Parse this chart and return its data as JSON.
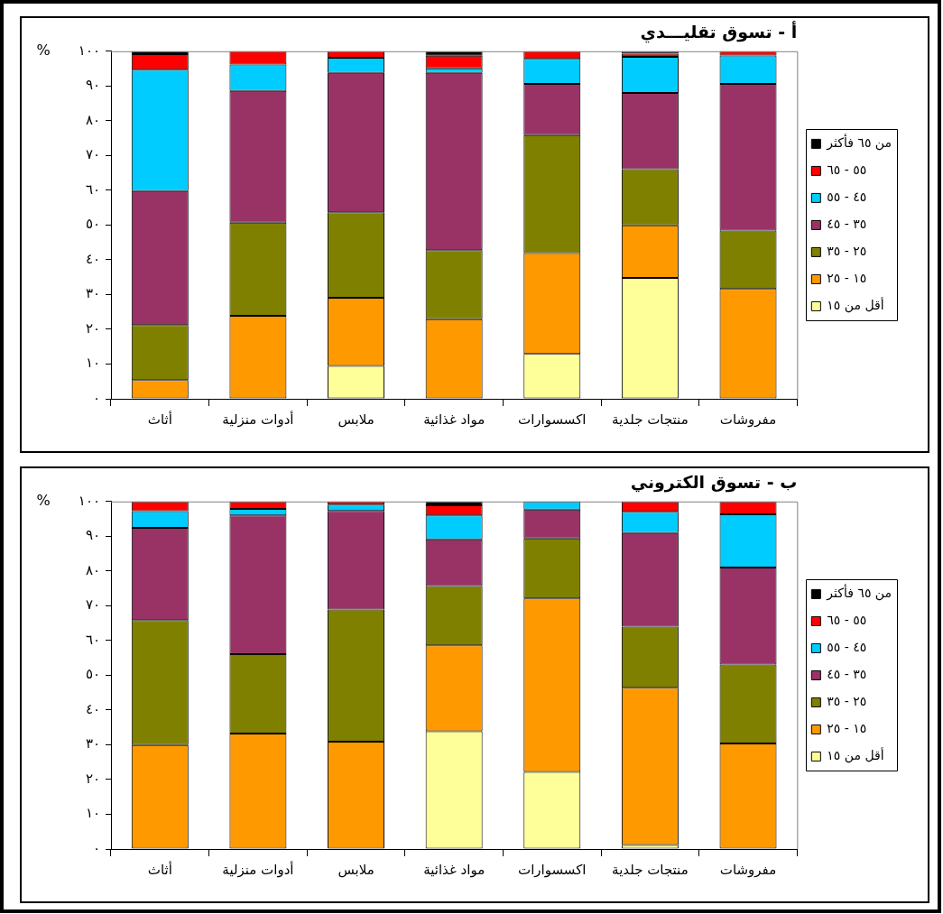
{
  "chart_data": [
    {
      "type": "bar",
      "title": "أ - تسوق تقليـــدي",
      "ylabel": "%",
      "stacked": true,
      "legend": "right",
      "categories": [
        "أثاث",
        "أدوات منزلية",
        "ملابس",
        "مواد غذائية",
        "اكسسوارات",
        "منتجات جلدية",
        "مفروشات"
      ],
      "ylim": [
        0,
        100
      ],
      "yticks": [
        {
          "value": 0,
          "label": "٠"
        },
        {
          "value": 10,
          "label": "١٠"
        },
        {
          "value": 20,
          "label": "٢٠"
        },
        {
          "value": 30,
          "label": "٣٠"
        },
        {
          "value": 40,
          "label": "٤٠"
        },
        {
          "value": 50,
          "label": "٥٠"
        },
        {
          "value": 60,
          "label": "٦٠"
        },
        {
          "value": 70,
          "label": "٧٠"
        },
        {
          "value": 80,
          "label": "٨٠"
        },
        {
          "value": 90,
          "label": "٩٠"
        },
        {
          "value": 100,
          "label": "١٠٠"
        }
      ],
      "series": [
        {
          "name": "أقل من ١٥",
          "color": "#ffff99",
          "values": [
            0,
            0,
            9.5,
            0,
            12.9,
            34.8,
            0
          ]
        },
        {
          "name": "١٥ - ٢٥",
          "color": "#ff9900",
          "values": [
            5.4,
            23.9,
            19.6,
            22.9,
            29.0,
            15.1,
            31.6
          ]
        },
        {
          "name": "٢٥ - ٣٥",
          "color": "#808000",
          "values": [
            15.8,
            26.8,
            24.6,
            19.9,
            34.0,
            16.2,
            16.8
          ]
        },
        {
          "name": "٣٥ - ٤٥",
          "color": "#993366",
          "values": [
            38.6,
            37.9,
            40.1,
            51.0,
            14.7,
            21.9,
            42.2
          ]
        },
        {
          "name": "٤٥ - ٥٥",
          "color": "#00ccff",
          "values": [
            34.9,
            7.6,
            4.3,
            1.3,
            7.2,
            10.4,
            8.2
          ]
        },
        {
          "name": "٥٥ - ٦٥",
          "color": "#ff0000",
          "values": [
            4.5,
            3.8,
            1.9,
            3.6,
            2.2,
            0.9,
            1.2
          ]
        },
        {
          "name": "من ٦٥ فأكثر",
          "color": "#000000",
          "values": [
            0.8,
            0,
            0,
            1.3,
            0,
            0.7,
            0
          ]
        }
      ]
    },
    {
      "type": "bar",
      "title": "ب - تسوق الكتروني",
      "ylabel": "%",
      "stacked": true,
      "legend": "right",
      "categories": [
        "أثاث",
        "أدوات منزلية",
        "ملابس",
        "مواد غذائية",
        "اكسسوارات",
        "منتجات جلدية",
        "مفروشات"
      ],
      "ylim": [
        0,
        100
      ],
      "yticks": [
        {
          "value": 0,
          "label": "٠"
        },
        {
          "value": 10,
          "label": "١٠"
        },
        {
          "value": 20,
          "label": "٢٠"
        },
        {
          "value": 30,
          "label": "٣٠"
        },
        {
          "value": 40,
          "label": "٤٠"
        },
        {
          "value": 50,
          "label": "٥٠"
        },
        {
          "value": 60,
          "label": "٦٠"
        },
        {
          "value": 70,
          "label": "٧٠"
        },
        {
          "value": 80,
          "label": "٨٠"
        },
        {
          "value": 90,
          "label": "٩٠"
        },
        {
          "value": 100,
          "label": "١٠٠"
        }
      ],
      "series": [
        {
          "name": "أقل من ١٥",
          "color": "#ffff99",
          "values": [
            0,
            0,
            0,
            33.9,
            22.2,
            1.2,
            0
          ]
        },
        {
          "name": "١٥ - ٢٥",
          "color": "#ff9900",
          "values": [
            29.9,
            33.2,
            30.9,
            24.7,
            49.9,
            45.2,
            30.4
          ]
        },
        {
          "name": "٢٥ - ٣٥",
          "color": "#808000",
          "values": [
            36.0,
            22.9,
            38.0,
            17.1,
            17.3,
            17.6,
            22.7
          ]
        },
        {
          "name": "٣٥ - ٤٥",
          "color": "#993366",
          "values": [
            26.5,
            39.9,
            28.4,
            13.4,
            8.3,
            26.9,
            27.9
          ]
        },
        {
          "name": "٤٥ - ٥٥",
          "color": "#00ccff",
          "values": [
            4.8,
            1.9,
            1.8,
            6.9,
            2.3,
            6.1,
            15.3
          ]
        },
        {
          "name": "٥٥ - ٦٥",
          "color": "#ff0000",
          "values": [
            2.8,
            2.1,
            0.9,
            2.9,
            0,
            3.0,
            3.7
          ]
        },
        {
          "name": "من ٦٥ فأكثر",
          "color": "#000000",
          "values": [
            0,
            0,
            0,
            1.1,
            0,
            0,
            0
          ]
        }
      ]
    }
  ]
}
